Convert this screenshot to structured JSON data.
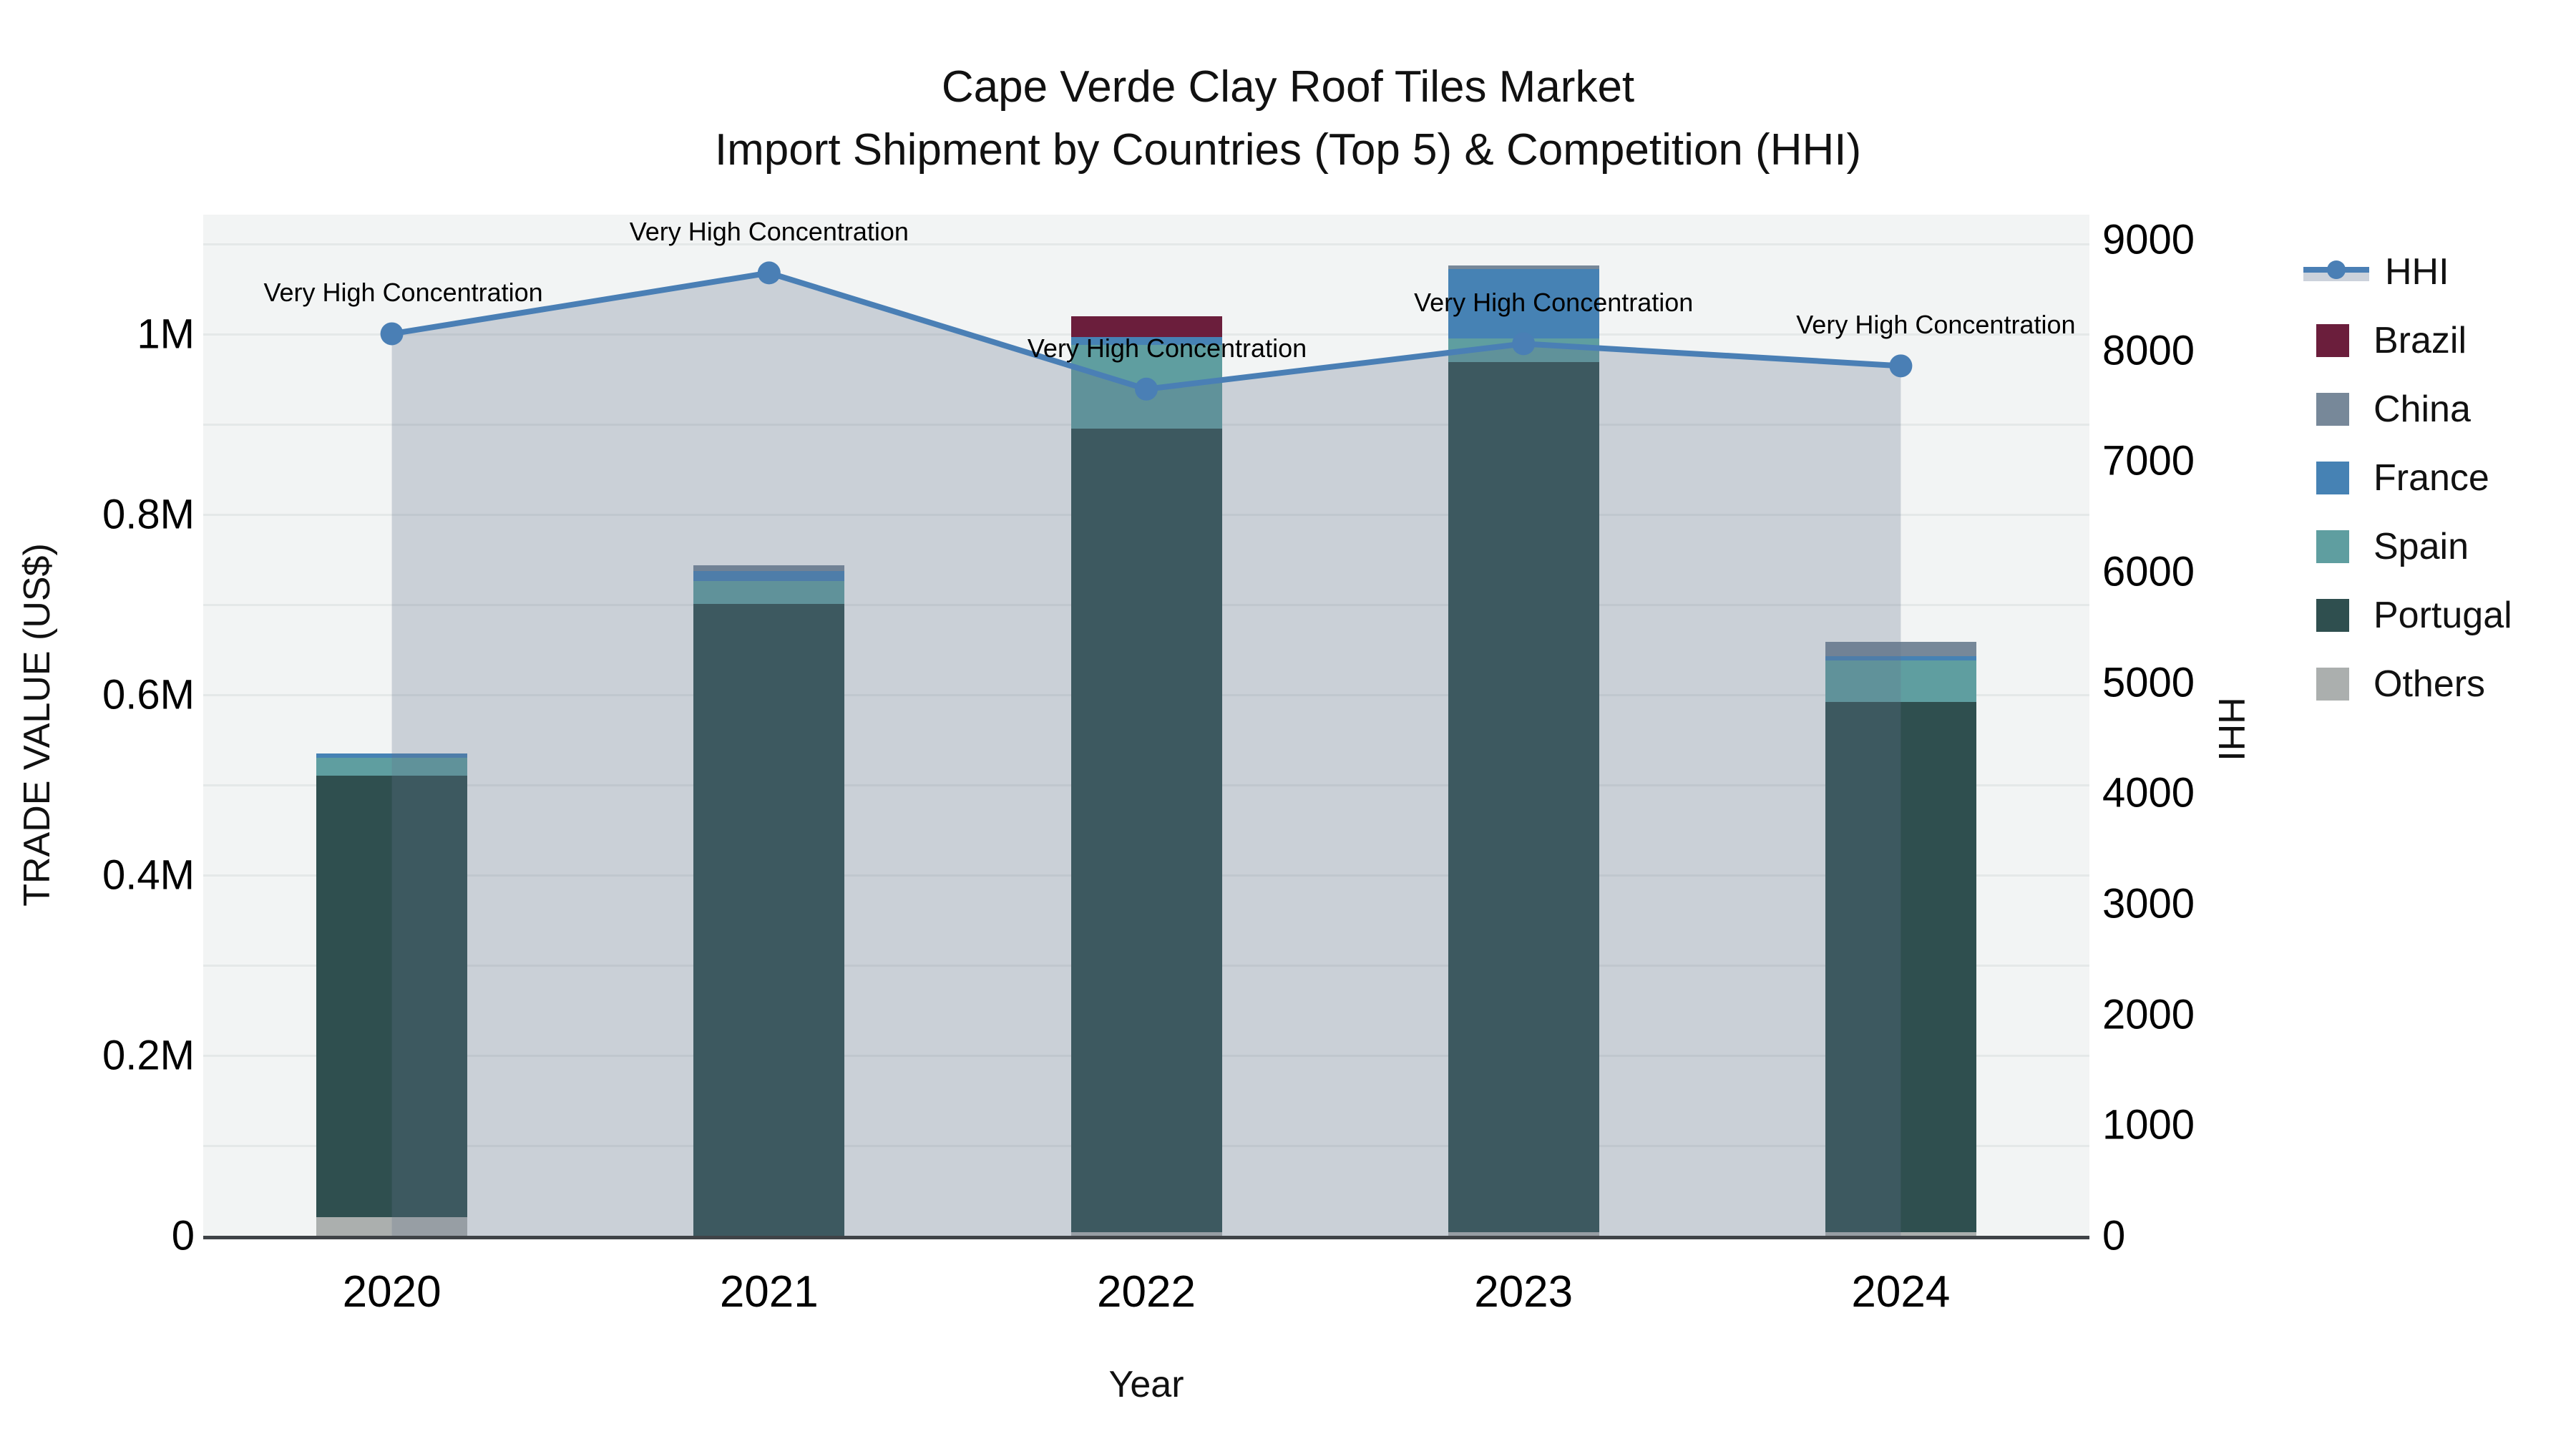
{
  "title": {
    "line1": "Cape Verde Clay Roof Tiles Market",
    "line2": "Import Shipment by Countries (Top 5) & Competition (HHI)"
  },
  "axes": {
    "x": {
      "title": "Year"
    },
    "y_left": {
      "title": "TRADE VALUE (US$)",
      "tick_labels": [
        "0",
        "0.2M",
        "0.4M",
        "0.6M",
        "0.8M",
        "1M"
      ],
      "tick_values": [
        0,
        200000,
        400000,
        600000,
        800000,
        1000000
      ]
    },
    "y_right": {
      "title": "HHI",
      "tick_values": [
        0,
        1000,
        2000,
        3000,
        4000,
        5000,
        6000,
        7000,
        8000,
        9000
      ]
    }
  },
  "legend": [
    {
      "label": "HHI",
      "type": "line",
      "color": "#4a7fb5"
    },
    {
      "label": "Brazil",
      "type": "swatch",
      "color": "#6b1e3c"
    },
    {
      "label": "China",
      "type": "swatch",
      "color": "#778899"
    },
    {
      "label": "France",
      "type": "swatch",
      "color": "#4682b4"
    },
    {
      "label": "Spain",
      "type": "swatch",
      "color": "#5f9ea0"
    },
    {
      "label": "Portugal",
      "type": "swatch",
      "color": "#2f4f4f"
    },
    {
      "label": "Others",
      "type": "swatch",
      "color": "#abafae"
    }
  ],
  "chart_data": {
    "type": "bar",
    "subtype": "stacked-bar-with-line",
    "categories": [
      "2020",
      "2021",
      "2022",
      "2023",
      "2024"
    ],
    "series": [
      {
        "name": "Others",
        "color": "#abafae",
        "values": [
          21000,
          0,
          4000,
          4000,
          4000
        ]
      },
      {
        "name": "Portugal",
        "color": "#2f4f4f",
        "values": [
          489000,
          701000,
          891000,
          965000,
          588000
        ]
      },
      {
        "name": "Spain",
        "color": "#5f9ea0",
        "values": [
          20000,
          25000,
          93000,
          26000,
          46000
        ]
      },
      {
        "name": "France",
        "color": "#4682b4",
        "values": [
          5000,
          11000,
          9000,
          77000,
          5000
        ]
      },
      {
        "name": "China",
        "color": "#778899",
        "values": [
          0,
          7000,
          0,
          4000,
          16000
        ]
      },
      {
        "name": "Brazil",
        "color": "#6b1e3c",
        "values": [
          0,
          0,
          23000,
          0,
          0
        ]
      }
    ],
    "bar_totals": [
      535000,
      744000,
      1020000,
      1076000,
      659000
    ],
    "hhi_line": {
      "name": "HHI",
      "color": "#4a7fb5",
      "fill_color": "rgba(100,115,140,0.28)",
      "values": [
        8150,
        8700,
        7650,
        8060,
        7860
      ],
      "point_annotations": [
        "Very High Concentration",
        "Very High Concentration",
        "Very High Concentration",
        "Very High Concentration",
        "Very High Concentration"
      ]
    },
    "title": "Cape Verde Clay Roof Tiles Market — Import Shipment by Countries (Top 5) & Competition (HHI)",
    "xlabel": "Year",
    "ylabel_left": "TRADE VALUE (US$)",
    "ylabel_right": "HHI",
    "ylim_left": [
      0,
      1133000
    ],
    "ylim_right": [
      0,
      9230
    ],
    "grid": true,
    "legend_position": "right"
  },
  "colors": {
    "plot_background": "#f2f4f4",
    "gridline": "#e4e8e8",
    "axis_line": "#3f4347",
    "hhi_line": "#4a7fb5",
    "hhi_fill": "rgba(100,115,140,0.28)"
  }
}
